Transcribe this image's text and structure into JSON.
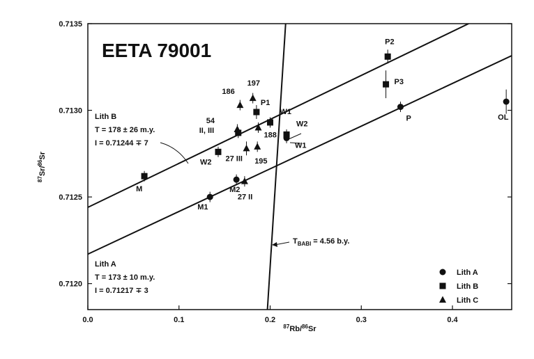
{
  "chart_data": {
    "type": "scatter",
    "title": "EETA 79001",
    "xlabel": "87Rb/86Sr",
    "ylabel": "87Sr/86Sr",
    "xlim": [
      0.0,
      0.465
    ],
    "ylim": [
      0.71185,
      0.7135
    ],
    "x_ticks": [
      "0.0",
      "0.1",
      "0.2",
      "0.3",
      "0.4"
    ],
    "y_ticks": [
      "0.7120",
      "0.7125",
      "0.7130",
      "0.7135"
    ],
    "legend_position": "bottom-right",
    "legend": [
      {
        "marker": "circle",
        "label": "Lith A"
      },
      {
        "marker": "square",
        "label": "Lith B"
      },
      {
        "marker": "triangle",
        "label": "Lith C"
      }
    ],
    "series": [
      {
        "name": "Lith A",
        "marker": "circle",
        "points": [
          {
            "x": 0.134,
            "y": 0.7125,
            "err": 3e-05,
            "label": "M1"
          },
          {
            "x": 0.163,
            "y": 0.7126,
            "err": 3e-05,
            "label": "M2"
          },
          {
            "x": 0.218,
            "y": 0.71284,
            "err": 3e-05,
            "label": "W1"
          },
          {
            "x": 0.343,
            "y": 0.71302,
            "err": 3e-05,
            "label": "P"
          },
          {
            "x": 0.459,
            "y": 0.71305,
            "err": 7e-05,
            "label": "OL"
          }
        ]
      },
      {
        "name": "Lith B",
        "marker": "square",
        "points": [
          {
            "x": 0.062,
            "y": 0.71262,
            "err": 3e-05,
            "label": "M"
          },
          {
            "x": 0.143,
            "y": 0.71276,
            "err": 3e-05,
            "label": "W2"
          },
          {
            "x": 0.165,
            "y": 0.71287,
            "err": 3e-05,
            "label": "54 II, III"
          },
          {
            "x": 0.185,
            "y": 0.71299,
            "err": 4e-05,
            "label": "P1"
          },
          {
            "x": 0.2,
            "y": 0.71293,
            "err": 3e-05,
            "label": "W1"
          },
          {
            "x": 0.218,
            "y": 0.71286,
            "err": 3e-05,
            "label": "W2"
          },
          {
            "x": 0.327,
            "y": 0.71315,
            "err": 8e-05,
            "label": "P3"
          },
          {
            "x": 0.329,
            "y": 0.71331,
            "err": 4e-05,
            "label": "P2"
          }
        ]
      },
      {
        "name": "Lith C",
        "marker": "triangle",
        "points": [
          {
            "x": 0.164,
            "y": 0.71289,
            "err": 3e-05,
            "label": ""
          },
          {
            "x": 0.167,
            "y": 0.71303,
            "err": 3e-05,
            "label": "186"
          },
          {
            "x": 0.172,
            "y": 0.71259,
            "err": 3e-05,
            "label": "27 II"
          },
          {
            "x": 0.174,
            "y": 0.71278,
            "err": 4e-05,
            "label": "27 III"
          },
          {
            "x": 0.181,
            "y": 0.71307,
            "err": 3e-05,
            "label": "197"
          },
          {
            "x": 0.186,
            "y": 0.71279,
            "err": 3e-05,
            "label": "195"
          },
          {
            "x": 0.187,
            "y": 0.7129,
            "err": 3e-05,
            "label": "188"
          }
        ]
      }
    ],
    "lines": [
      {
        "name": "Lith B isochron",
        "x": [
          0.0,
          0.465
        ],
        "y": [
          0.71244,
          0.71362
        ]
      },
      {
        "name": "Lith A isochron",
        "x": [
          0.0,
          0.465
        ],
        "y": [
          0.71217,
          0.713315
        ]
      },
      {
        "name": "T BABI",
        "x": [
          0.197,
          0.217
        ],
        "y": [
          0.71185,
          0.7135
        ]
      }
    ],
    "annotations": {
      "lith_b": {
        "name": "Lith B",
        "age": "T = 178 ± 26 m.y.",
        "intercept": "I = 0.71244 ∓ 7"
      },
      "lith_a": {
        "name": "Lith A",
        "age": "T = 173 ± 10 m.y.",
        "intercept": "I = 0.71217 ∓ 3"
      },
      "babi": {
        "label_main": "T",
        "label_sub": "BABI",
        "label_rest": "= 4.56 b.y."
      }
    }
  }
}
